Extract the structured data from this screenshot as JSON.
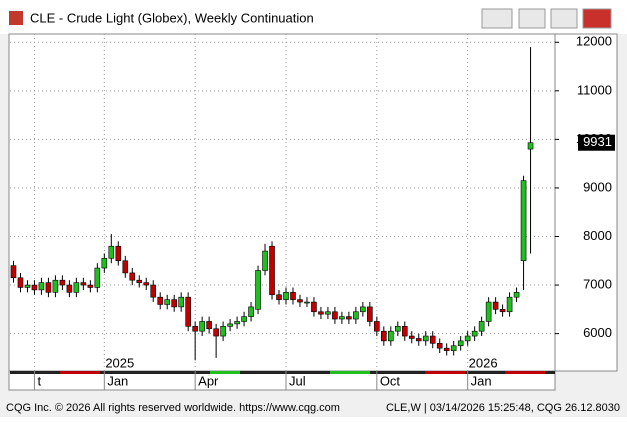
{
  "window_title": "CLE - Crude Light (Globex), Weekly Continuation",
  "footer_left": "CQG Inc. © 2026 All rights reserved worldwide. https://www.cqg.com",
  "footer_right": "CLE,W | 03/14/2026 15:25:48, CQG 26.12.8030",
  "chart_data": {
    "type": "candlestick",
    "open": [
      7400,
      7150,
      6950,
      7000,
      6900,
      7050,
      6850,
      7100,
      7000,
      6850,
      7050,
      7000,
      6950,
      7350,
      7550,
      7800,
      7500,
      7250,
      7100,
      7050,
      7000,
      6750,
      6600,
      6700,
      6550,
      6750,
      6150,
      6050,
      6250,
      6100,
      5950,
      6150,
      6200,
      6250,
      6350,
      6500,
      7300,
      7800,
      6800,
      6700,
      6850,
      6700,
      6650,
      6650,
      6450,
      6400,
      6450,
      6300,
      6350,
      6300,
      6450,
      6550,
      6250,
      6050,
      5850,
      6050,
      6150,
      5950,
      5900,
      5850,
      5950,
      5800,
      5700,
      5650,
      5750,
      5850,
      5950,
      6050,
      6250,
      6650,
      6500,
      6450,
      6750,
      7500,
      9800
    ],
    "high": [
      7500,
      7250,
      7100,
      7100,
      7150,
      7150,
      7200,
      7200,
      7100,
      7150,
      7150,
      7100,
      7450,
      7650,
      8050,
      7900,
      7600,
      7350,
      7200,
      7150,
      7100,
      6850,
      6800,
      6800,
      6850,
      6850,
      6250,
      6350,
      6350,
      6200,
      6250,
      6300,
      6350,
      6450,
      6650,
      7400,
      7850,
      7900,
      6900,
      6950,
      6950,
      6800,
      6750,
      6750,
      6550,
      6550,
      6550,
      6450,
      6450,
      6550,
      6650,
      6650,
      6350,
      6150,
      6150,
      6250,
      6250,
      6050,
      6000,
      6050,
      6050,
      5900,
      5800,
      5850,
      5950,
      6050,
      6150,
      6350,
      6750,
      6750,
      6600,
      6850,
      6950,
      9250,
      11900
    ],
    "low": [
      7050,
      6850,
      6850,
      6800,
      6800,
      6750,
      6750,
      6900,
      6750,
      6750,
      6900,
      6850,
      6850,
      7250,
      7450,
      7400,
      7150,
      7000,
      6950,
      6900,
      6650,
      6500,
      6500,
      6450,
      6450,
      6050,
      5450,
      5950,
      6000,
      5500,
      5850,
      6050,
      6100,
      6150,
      6250,
      6400,
      7200,
      6700,
      6600,
      6600,
      6600,
      6550,
      6550,
      6350,
      6300,
      6300,
      6200,
      6200,
      6200,
      6200,
      6350,
      6150,
      5950,
      5750,
      5750,
      5950,
      5850,
      5800,
      5750,
      5750,
      5700,
      5600,
      5550,
      5550,
      5650,
      5750,
      5850,
      5950,
      6150,
      6400,
      6350,
      6350,
      6650,
      6900,
      7650
    ],
    "close": [
      7150,
      6950,
      7000,
      6900,
      7050,
      6850,
      7100,
      7000,
      6850,
      7050,
      7000,
      6950,
      7350,
      7550,
      7800,
      7500,
      7250,
      7100,
      7050,
      7000,
      6750,
      6600,
      6700,
      6550,
      6750,
      6150,
      6050,
      6250,
      6100,
      5950,
      6150,
      6200,
      6250,
      6350,
      6550,
      7300,
      7700,
      6800,
      6700,
      6850,
      6700,
      6650,
      6650,
      6450,
      6400,
      6450,
      6300,
      6350,
      6300,
      6450,
      6550,
      6250,
      6050,
      5850,
      6050,
      6150,
      5950,
      5900,
      5850,
      5950,
      5800,
      5700,
      5650,
      5750,
      5850,
      5950,
      6050,
      6250,
      6650,
      6500,
      6450,
      6750,
      6850,
      9150,
      9931
    ],
    "up_color": "#1fbf1f",
    "down_color": "#c00000",
    "last": 9931,
    "ylim": [
      5230,
      12170
    ],
    "yticks": [
      6000,
      7000,
      8000,
      9000,
      10000,
      11000,
      12000
    ],
    "xlim": [
      -0.5,
      77.5
    ],
    "xticks": [
      {
        "value": 3,
        "label": "t"
      },
      {
        "value": 13,
        "label": "Jan"
      },
      {
        "value": 26,
        "label": "Apr"
      },
      {
        "value": 39,
        "label": "Jul"
      },
      {
        "value": 52,
        "label": "Oct"
      },
      {
        "value": 65,
        "label": "Jan"
      }
    ],
    "years": [
      {
        "value": 13,
        "label": "2025"
      },
      {
        "value": 65,
        "label": "2026"
      }
    ],
    "grid": true
  }
}
